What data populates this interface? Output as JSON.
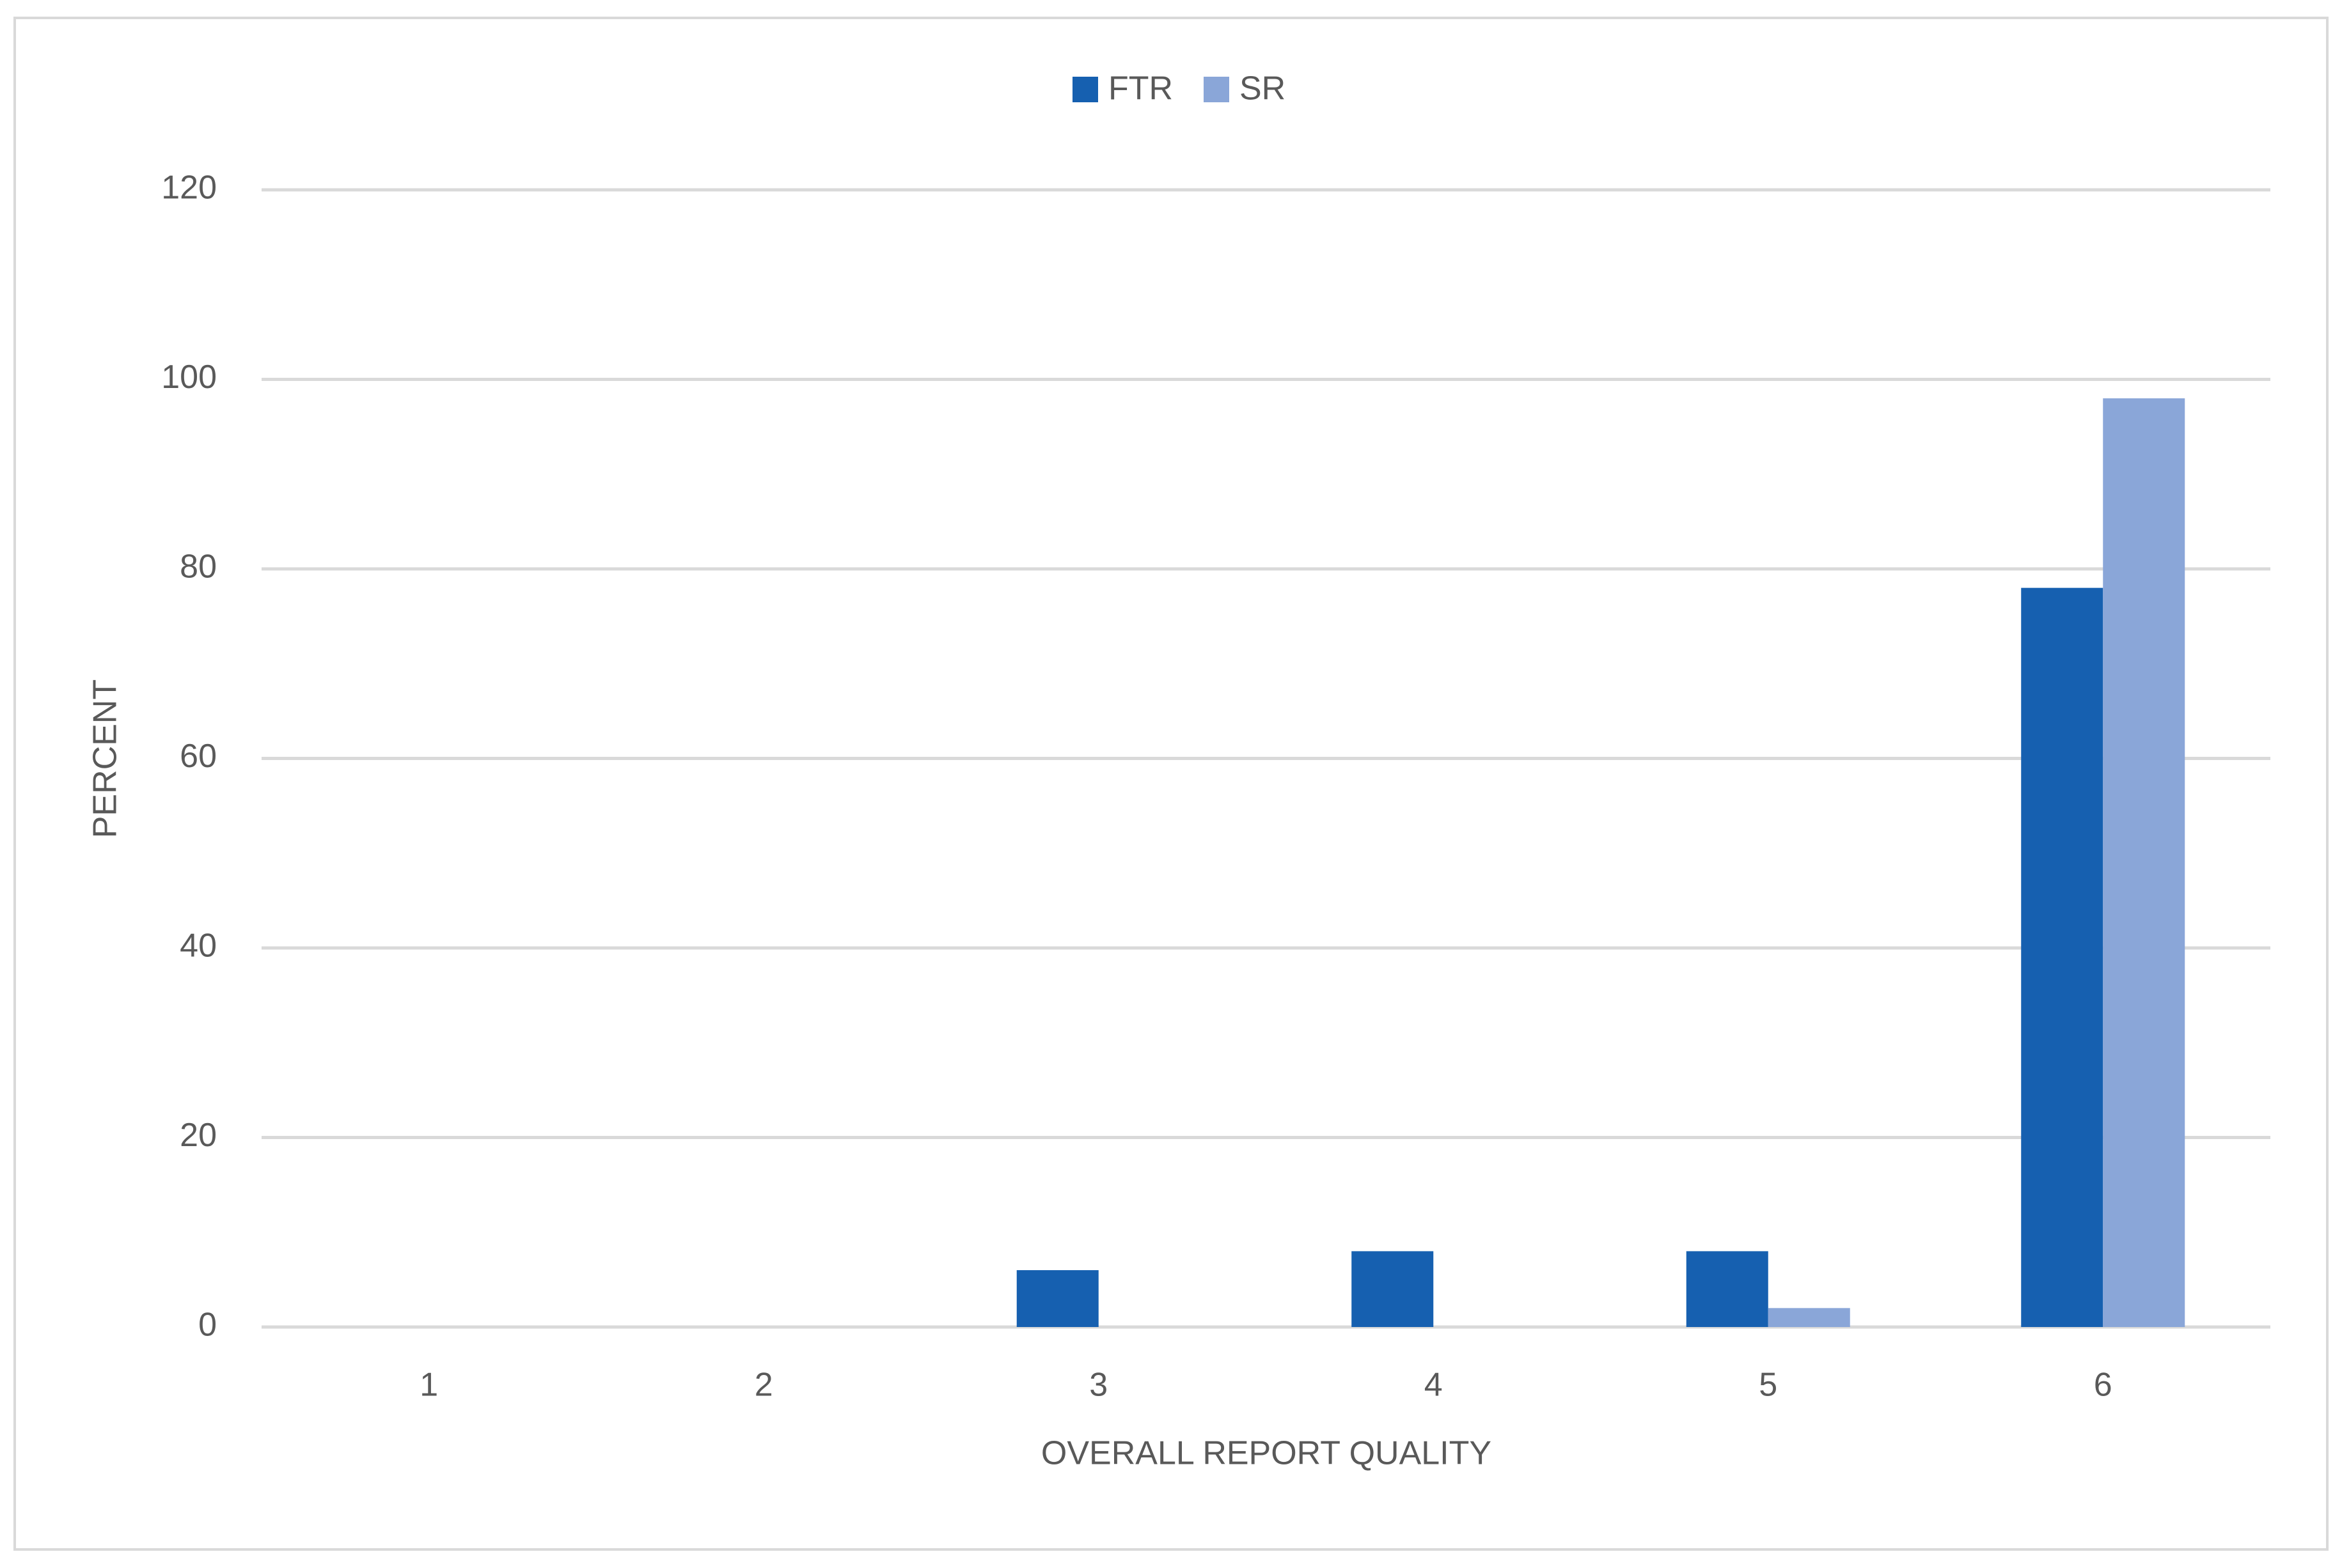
{
  "chart_data": {
    "type": "bar",
    "x_label": "OVERALL REPORT QUALITY",
    "y_label": "PERCENT",
    "categories": [
      "1",
      "2",
      "3",
      "4",
      "5",
      "6"
    ],
    "series": [
      {
        "name": "FTR",
        "color": "#1660b0",
        "values": [
          0,
          0,
          6,
          8,
          8,
          78
        ]
      },
      {
        "name": "SR",
        "color": "#8aa6d8",
        "values": [
          0,
          0,
          0,
          0,
          2,
          98
        ]
      }
    ],
    "ylim": [
      0,
      120
    ],
    "yticks": [
      0,
      20,
      40,
      60,
      80,
      100,
      120
    ],
    "grid": true,
    "legend": "top"
  }
}
